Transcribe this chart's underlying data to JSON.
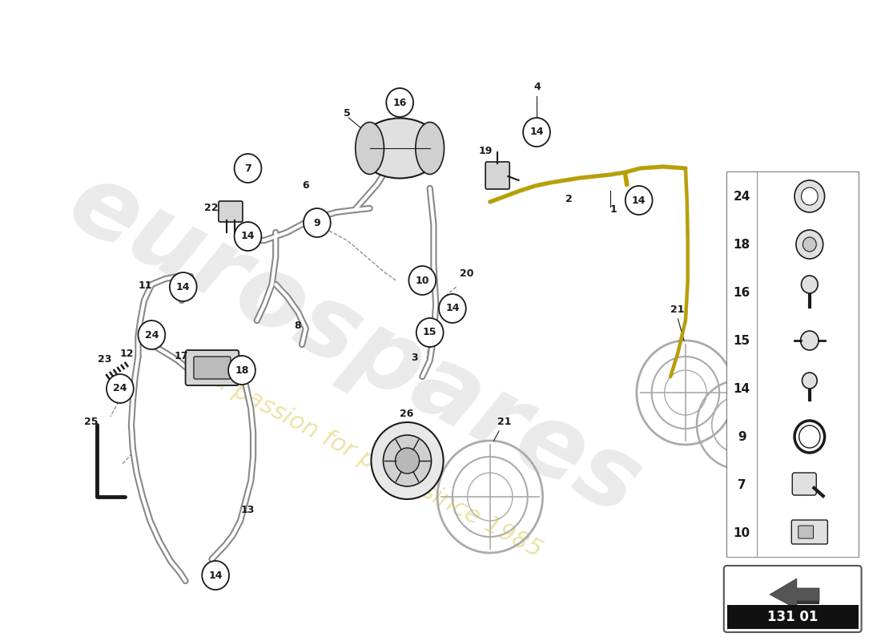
{
  "bg_color": "#ffffff",
  "dc": "#1a1a1a",
  "lc": "#1a1a1a",
  "hlc": "#b8a000",
  "wm1": "eurospares",
  "wm2": "a passion for parts since 1985",
  "part_num": "131 01",
  "figsize": [
    11.0,
    8.0
  ],
  "dpi": 100,
  "legend_nums": [
    "24",
    "18",
    "16",
    "15",
    "14",
    "9",
    "7",
    "10"
  ]
}
